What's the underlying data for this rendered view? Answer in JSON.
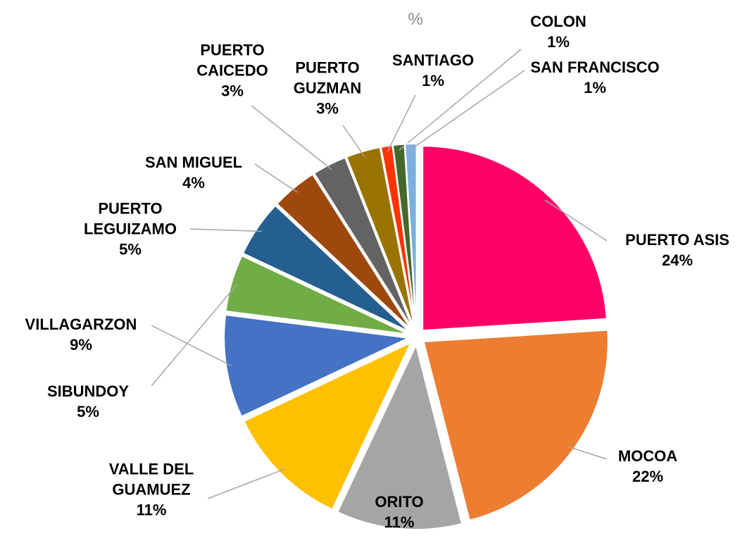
{
  "chart_data": {
    "type": "pie",
    "title": "%",
    "categories": [
      "PUERTO ASIS",
      "MOCOA",
      "ORITO",
      "VALLE DEL GUAMUEZ",
      "VILLAGARZON",
      "SIBUNDOY",
      "PUERTO LEGUIZAMO",
      "SAN MIGUEL",
      "PUERTO CAICEDO",
      "PUERTO GUZMAN",
      "SANTIAGO",
      "COLON",
      "SAN FRANCISCO"
    ],
    "values": [
      24,
      22,
      11,
      11,
      9,
      5,
      5,
      4,
      3,
      3,
      1,
      1,
      1
    ],
    "value_labels": [
      "24%",
      "22%",
      "11%",
      "11%",
      "9%",
      "5%",
      "5%",
      "4%",
      "3%",
      "3%",
      "1%",
      "1%",
      "1%"
    ],
    "colors": [
      "#ff0066",
      "#ed7d31",
      "#a5a5a5",
      "#ffc000",
      "#4472c4",
      "#70ad47",
      "#255e91",
      "#9e480e",
      "#636363",
      "#997300",
      "#ff3300",
      "#43682b",
      "#7cafdd"
    ]
  }
}
